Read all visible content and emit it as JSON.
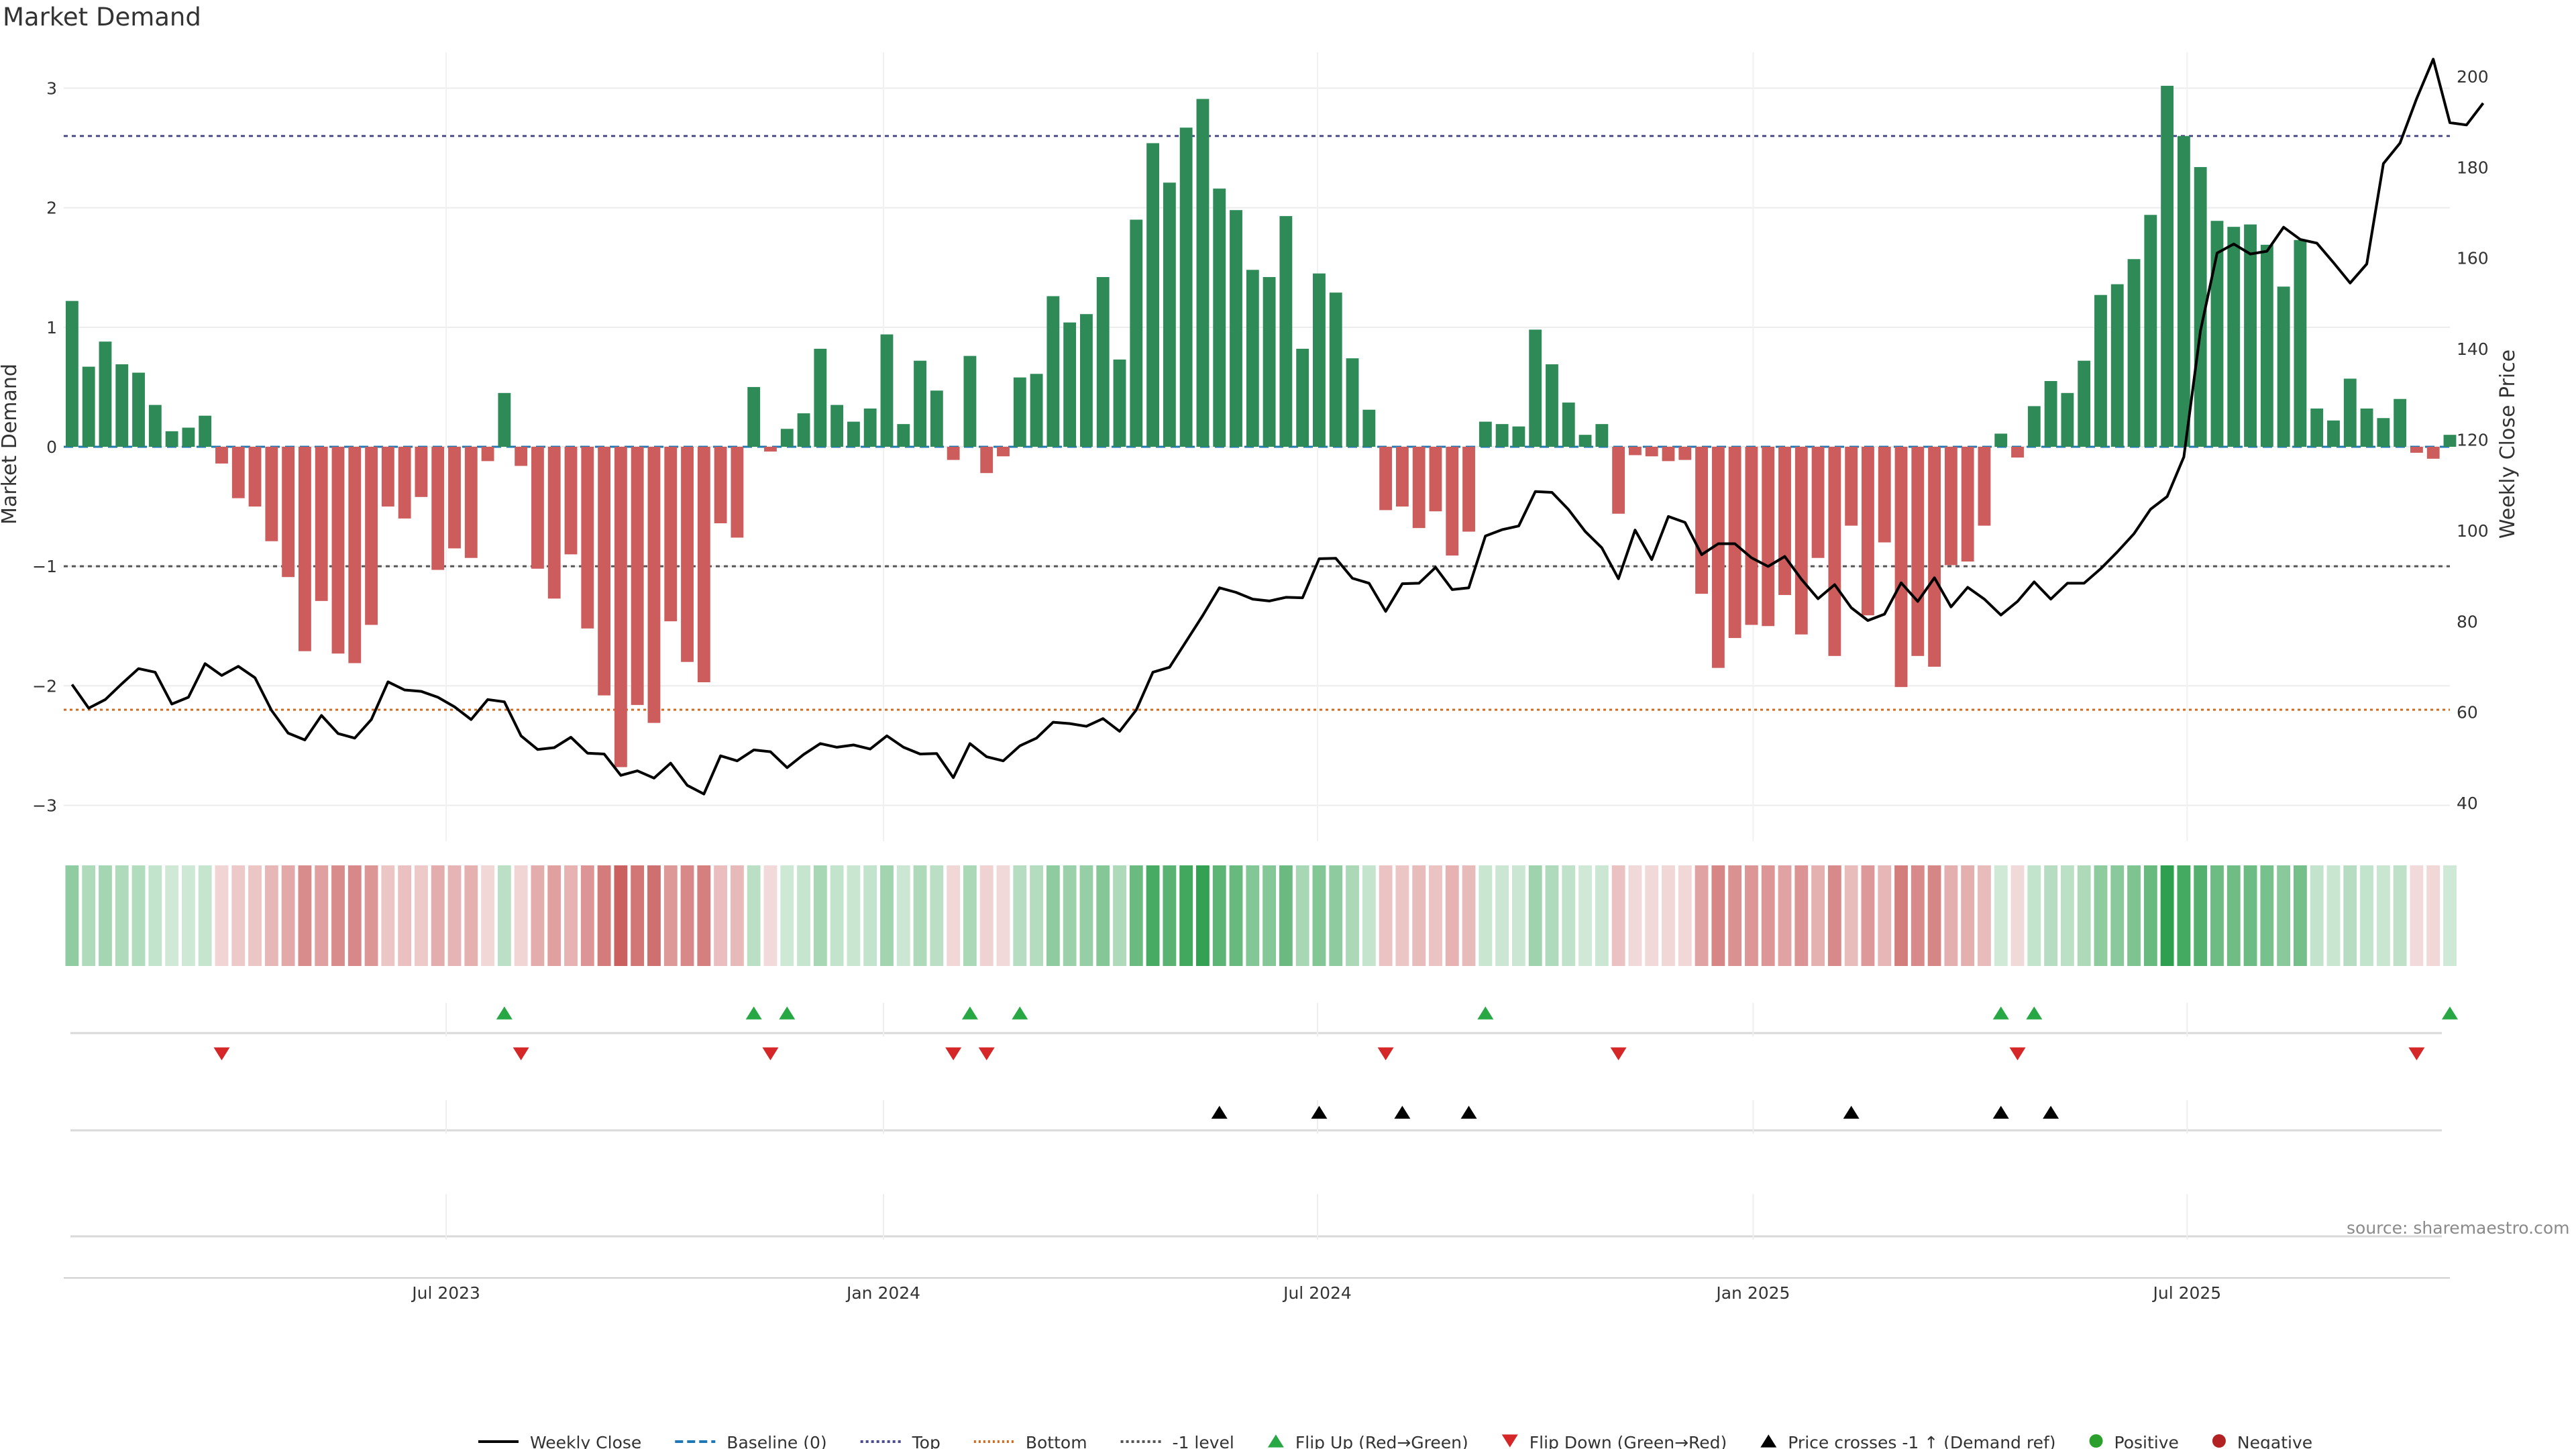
{
  "title": "Market Demand",
  "source": "source: sharemaestro.com",
  "chart_data": {
    "type": "bar",
    "title": "Market Demand",
    "ylabel": "Market Demand",
    "y2label": "Weekly Close Price",
    "ylim": [
      -3.3,
      3.3
    ],
    "y2lim": [
      31.6,
      205.3
    ],
    "y_ticks": [
      {
        "v": -3,
        "label": "−3"
      },
      {
        "v": -2,
        "label": "−2"
      },
      {
        "v": -1,
        "label": "−1"
      },
      {
        "v": 0,
        "label": "0"
      },
      {
        "v": 1,
        "label": "1"
      },
      {
        "v": 2,
        "label": "2"
      },
      {
        "v": 3,
        "label": "3"
      }
    ],
    "y2_ticks": [
      40,
      60,
      80,
      100,
      120,
      140,
      160,
      180,
      200
    ],
    "x_ticks": [
      {
        "week": 22.5,
        "label": "Jul 2023"
      },
      {
        "week": 48.8,
        "label": "Jan 2024"
      },
      {
        "week": 74.9,
        "label": "Jul 2024"
      },
      {
        "week": 101.1,
        "label": "Jan 2025"
      },
      {
        "week": 127.2,
        "label": "Jul 2025"
      }
    ],
    "levels": {
      "top": 2.6,
      "bottom": -2.2,
      "minus_one": -1
    },
    "demand": [
      1.22,
      0.67,
      0.88,
      0.69,
      0.62,
      0.35,
      0.13,
      0.16,
      0.26,
      -0.14,
      -0.43,
      -0.5,
      -0.79,
      -1.09,
      -1.71,
      -1.29,
      -1.73,
      -1.81,
      -1.49,
      -0.5,
      -0.6,
      -0.42,
      -1.03,
      -0.85,
      -0.93,
      -0.12,
      0.45,
      -0.16,
      -1.02,
      -1.27,
      -0.9,
      -1.52,
      -2.08,
      -2.68,
      -2.16,
      -2.31,
      -1.46,
      -1.8,
      -1.97,
      -0.64,
      -0.76,
      0.5,
      -0.04,
      0.15,
      0.28,
      0.82,
      0.35,
      0.21,
      0.32,
      0.94,
      0.19,
      0.72,
      0.47,
      -0.11,
      0.76,
      -0.22,
      -0.08,
      0.58,
      0.61,
      1.26,
      1.04,
      1.11,
      1.42,
      0.73,
      1.9,
      2.54,
      2.21,
      2.67,
      2.91,
      2.16,
      1.98,
      1.48,
      1.42,
      1.93,
      0.82,
      1.45,
      1.29,
      0.74,
      0.31,
      -0.53,
      -0.5,
      -0.68,
      -0.54,
      -0.91,
      -0.71,
      0.21,
      0.19,
      0.17,
      0.98,
      0.69,
      0.37,
      0.1,
      0.19,
      -0.56,
      -0.07,
      -0.08,
      -0.12,
      -0.11,
      -1.23,
      -1.85,
      -1.6,
      -1.49,
      -1.5,
      -1.24,
      -1.57,
      -0.93,
      -1.75,
      -0.66,
      -1.41,
      -0.8,
      -2.01,
      -1.75,
      -1.84,
      -0.99,
      -0.96,
      -0.66,
      0.11,
      -0.09,
      0.34,
      0.55,
      0.45,
      0.72,
      1.27,
      1.36,
      1.57,
      1.94,
      3.02,
      2.6,
      2.34,
      1.89,
      1.84,
      1.86,
      1.69,
      1.34,
      1.73,
      0.32,
      0.22,
      0.57,
      0.32,
      0.24,
      0.4,
      -0.05,
      -0.1,
      0.1
    ],
    "price": [
      66.1,
      60.9,
      62.8,
      66.3,
      69.6,
      68.8,
      61.8,
      63.3,
      70.7,
      68.1,
      70.1,
      67.6,
      60.4,
      55.4,
      53.9,
      59.3,
      55.3,
      54.3,
      58.4,
      66.7,
      64.9,
      64.6,
      63.3,
      61.2,
      58.4,
      62.8,
      62.3,
      54.8,
      51.8,
      52.2,
      54.5,
      51.0,
      50.8,
      46.1,
      47.1,
      45.5,
      48.8,
      43.9,
      42.0,
      50.4,
      49.3,
      51.7,
      51.3,
      47.8,
      50.7,
      53.1,
      52.3,
      52.8,
      51.9,
      54.8,
      52.3,
      50.8,
      50.9,
      45.6,
      53.1,
      50.2,
      49.3,
      52.6,
      54.3,
      57.8,
      57.5,
      56.9,
      58.6,
      55.8,
      60.5,
      68.8,
      69.9,
      75.6,
      81.3,
      87.4,
      86.4,
      84.9,
      84.5,
      85.3,
      85.2,
      93.8,
      93.9,
      89.5,
      88.4,
      82.2,
      88.3,
      88.4,
      91.9,
      87.0,
      87.4,
      98.8,
      100.2,
      101.0,
      108.6,
      108.4,
      104.6,
      99.8,
      96.2,
      89.4,
      100.1,
      93.6,
      103.1,
      101.8,
      94.7,
      97.1,
      97.1,
      94.0,
      92.1,
      94.3,
      89.3,
      85.0,
      88.1,
      83.0,
      80.2,
      81.6,
      88.5,
      84.4,
      89.6,
      83.2,
      87.5,
      84.9,
      81.4,
      84.4,
      88.7,
      84.9,
      88.4,
      88.4,
      91.6,
      95.3,
      99.3,
      104.7,
      107.5,
      116.2,
      144.0,
      161.1,
      163.1,
      160.9,
      161.5,
      166.8,
      164.1,
      163.3,
      159.0,
      154.5,
      158.7,
      180.8,
      185.3,
      195.1,
      203.8,
      189.8,
      189.3,
      194.1
    ],
    "flip_up_weeks": [
      26,
      41,
      43,
      54,
      57,
      85,
      116,
      118,
      143
    ],
    "flip_down_weeks": [
      9,
      27,
      42,
      53,
      55,
      79,
      93,
      117,
      141
    ],
    "price_cross_weeks": [
      69,
      75,
      80,
      84,
      107,
      116,
      119
    ],
    "legend": [
      "Weekly Close",
      "Baseline (0)",
      "Top",
      "Bottom",
      "-1 level",
      "Flip Up (Red→Green)",
      "Flip Down (Green→Red)",
      "Price crosses -1 ↑ (Demand ref)",
      "Positive",
      "Negative"
    ],
    "colors": {
      "positive": "#2e8b57",
      "negative": "#cd5c5c",
      "price_line": "#000000",
      "baseline": "#1f77b4",
      "top": "#4b4b8f",
      "bottom": "#d2691e",
      "minus_one": "#555555",
      "flip_up": "#28a745",
      "flip_down": "#d62728",
      "cross": "#000000",
      "positive_dot": "#2ca02c",
      "negative_dot": "#b22222"
    }
  }
}
